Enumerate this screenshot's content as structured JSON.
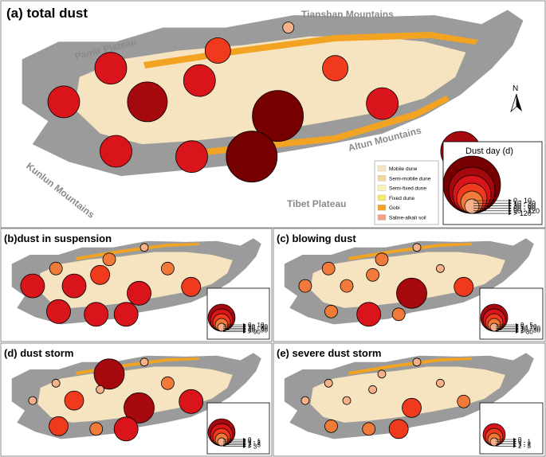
{
  "colors": {
    "outline": "#9b9b9b",
    "desert": "#f6e3bf",
    "gobi": "#f2a322",
    "circle_classes": [
      "#f6b08a",
      "#f07a3a",
      "#ef3a1d",
      "#d9141a",
      "#a5090d",
      "#760000"
    ]
  },
  "labels": {
    "tianshan": "Tianshan Mountains",
    "pamir": "Pamir Plateau",
    "kunlun": "Kunlun Mountains",
    "altun": "Altun Mountains",
    "tibet": "Tibet Plateau",
    "north": "N"
  },
  "dune_legend": [
    {
      "label": "Mobile dune",
      "color": "#f6e3bf"
    },
    {
      "label": "Semi-mobile dune",
      "color": "#f5d89f"
    },
    {
      "label": "Semi-fixed dune",
      "color": "#fbf0b8"
    },
    {
      "label": "Fixed dune",
      "color": "#f2ea6b"
    },
    {
      "label": "Gobi",
      "color": "#f2a322"
    },
    {
      "label": "Saline-alkali soil",
      "color": "#f4a184"
    }
  ],
  "panels": [
    {
      "id": "a",
      "title": "(a) total dust",
      "legend_title": "Dust day (d)",
      "classes": [
        "0 - 10",
        "10 - 30",
        "30 - 60",
        "60 - 90",
        "90 - 120",
        "> 120"
      ],
      "stations": [
        {
          "site": [
            0.54,
            0.12
          ],
          "class": 0
        },
        {
          "site": [
            0.405,
            0.25
          ],
          "class": 2
        },
        {
          "site": [
            0.2,
            0.35
          ],
          "class": 3
        },
        {
          "site": [
            0.37,
            0.42
          ],
          "class": 3
        },
        {
          "site": [
            0.11,
            0.54
          ],
          "class": 3
        },
        {
          "site": [
            0.27,
            0.54
          ],
          "class": 4
        },
        {
          "site": [
            0.63,
            0.35
          ],
          "class": 2
        },
        {
          "site": [
            0.72,
            0.55
          ],
          "class": 3
        },
        {
          "site": [
            0.52,
            0.62
          ],
          "class": 5
        },
        {
          "site": [
            0.21,
            0.82
          ],
          "class": 3
        },
        {
          "site": [
            0.355,
            0.85
          ],
          "class": 3
        },
        {
          "site": [
            0.47,
            0.85
          ],
          "class": 5
        },
        {
          "site": [
            0.87,
            0.82
          ],
          "class": 4
        }
      ]
    },
    {
      "id": "b",
      "title": "(b)dust in suspension",
      "classes": [
        "0 - 10",
        "10 - 30",
        "30 - 60",
        "60 - 90",
        "> 90"
      ],
      "stations": [
        {
          "site": [
            0.54,
            0.12
          ],
          "class": 0
        },
        {
          "site": [
            0.405,
            0.25
          ],
          "class": 1
        },
        {
          "site": [
            0.2,
            0.35
          ],
          "class": 1
        },
        {
          "site": [
            0.37,
            0.42
          ],
          "class": 2
        },
        {
          "site": [
            0.11,
            0.54
          ],
          "class": 3
        },
        {
          "site": [
            0.27,
            0.54
          ],
          "class": 3
        },
        {
          "site": [
            0.63,
            0.35
          ],
          "class": 1
        },
        {
          "site": [
            0.72,
            0.55
          ],
          "class": 2
        },
        {
          "site": [
            0.52,
            0.62
          ],
          "class": 3
        },
        {
          "site": [
            0.21,
            0.82
          ],
          "class": 3
        },
        {
          "site": [
            0.355,
            0.85
          ],
          "class": 3
        },
        {
          "site": [
            0.47,
            0.85
          ],
          "class": 3
        },
        {
          "site": [
            0.87,
            0.82
          ],
          "class": 3
        }
      ]
    },
    {
      "id": "c",
      "title": "(c) blowing dust",
      "classes": [
        "0 - 5",
        "5 - 10",
        "10 - 20",
        "20 - 30",
        "> 30"
      ],
      "stations": [
        {
          "site": [
            0.54,
            0.12
          ],
          "class": 0
        },
        {
          "site": [
            0.405,
            0.25
          ],
          "class": 1
        },
        {
          "site": [
            0.2,
            0.35
          ],
          "class": 1
        },
        {
          "site": [
            0.37,
            0.42
          ],
          "class": 1
        },
        {
          "site": [
            0.11,
            0.54
          ],
          "class": 1
        },
        {
          "site": [
            0.27,
            0.54
          ],
          "class": 1
        },
        {
          "site": [
            0.63,
            0.35
          ],
          "class": 0
        },
        {
          "site": [
            0.72,
            0.55
          ],
          "class": 2
        },
        {
          "site": [
            0.52,
            0.62
          ],
          "class": 4
        },
        {
          "site": [
            0.21,
            0.82
          ],
          "class": 1
        },
        {
          "site": [
            0.355,
            0.85
          ],
          "class": 3
        },
        {
          "site": [
            0.47,
            0.85
          ],
          "class": 1
        },
        {
          "site": [
            0.87,
            0.82
          ],
          "class": 2
        }
      ]
    },
    {
      "id": "d",
      "title": "(d) dust storm",
      "classes": [
        "0",
        "0 - 1",
        "1 - 2",
        "2 - 3",
        "> 3"
      ],
      "stations": [
        {
          "site": [
            0.54,
            0.12
          ],
          "class": 0
        },
        {
          "site": [
            0.405,
            0.25
          ],
          "class": 4
        },
        {
          "site": [
            0.2,
            0.35
          ],
          "class": 0
        },
        {
          "site": [
            0.37,
            0.42
          ],
          "class": 0
        },
        {
          "site": [
            0.11,
            0.54
          ],
          "class": 0
        },
        {
          "site": [
            0.27,
            0.54
          ],
          "class": 2
        },
        {
          "site": [
            0.63,
            0.35
          ],
          "class": 1
        },
        {
          "site": [
            0.72,
            0.55
          ],
          "class": 3
        },
        {
          "site": [
            0.52,
            0.62
          ],
          "class": 4
        },
        {
          "site": [
            0.21,
            0.82
          ],
          "class": 2
        },
        {
          "site": [
            0.355,
            0.85
          ],
          "class": 1
        },
        {
          "site": [
            0.47,
            0.85
          ],
          "class": 3
        },
        {
          "site": [
            0.87,
            0.82
          ],
          "class": 3
        }
      ]
    },
    {
      "id": "e",
      "title": "(e) severe dust storm",
      "classes": [
        "0",
        "0 - 1",
        "1 - 2",
        "2 - 3"
      ],
      "stations": [
        {
          "site": [
            0.54,
            0.12
          ],
          "class": 0
        },
        {
          "site": [
            0.405,
            0.25
          ],
          "class": 0
        },
        {
          "site": [
            0.2,
            0.35
          ],
          "class": 0
        },
        {
          "site": [
            0.37,
            0.42
          ],
          "class": 0
        },
        {
          "site": [
            0.11,
            0.54
          ],
          "class": 0
        },
        {
          "site": [
            0.27,
            0.54
          ],
          "class": 0
        },
        {
          "site": [
            0.63,
            0.35
          ],
          "class": 0
        },
        {
          "site": [
            0.72,
            0.55
          ],
          "class": 1
        },
        {
          "site": [
            0.52,
            0.62
          ],
          "class": 2
        },
        {
          "site": [
            0.21,
            0.82
          ],
          "class": 1
        },
        {
          "site": [
            0.355,
            0.85
          ],
          "class": 1
        },
        {
          "site": [
            0.47,
            0.85
          ],
          "class": 2
        },
        {
          "site": [
            0.87,
            0.82
          ],
          "class": 2
        }
      ]
    }
  ]
}
